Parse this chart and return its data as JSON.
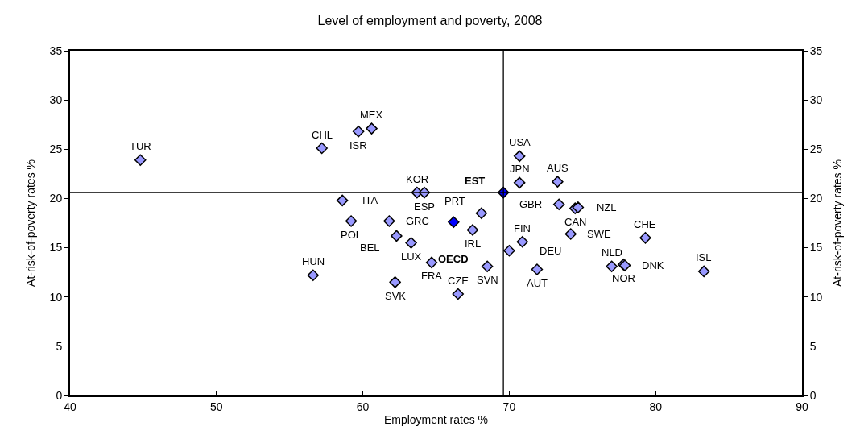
{
  "chart_data": {
    "type": "scatter",
    "title": "Level of employment and poverty, 2008",
    "xlabel": "Employment rates %",
    "ylabel": "At-risk-of-poverty rates %",
    "y2label": "At-risk-of-poverty rates %",
    "series": [
      {
        "color": "#9999ff",
        "x": [
          44.8,
          56.6,
          57.2,
          59.7,
          60.6,
          58.6,
          59.2,
          61.8,
          62.3,
          63.3,
          64.7,
          62.2,
          66.5,
          63.7,
          64.2,
          67.5,
          68.5,
          68.1,
          70.0,
          70.9,
          71.9,
          70.7,
          70.7,
          73.3,
          73.4,
          74.5,
          74.7,
          74.2,
          79.3,
          77.0,
          77.8,
          77.9,
          83.3
        ],
        "values": [
          23.9,
          12.2,
          25.1,
          26.8,
          27.1,
          19.8,
          17.7,
          17.7,
          16.2,
          15.5,
          13.5,
          11.5,
          10.3,
          20.6,
          20.6,
          16.8,
          13.1,
          18.5,
          14.7,
          15.6,
          12.8,
          24.3,
          21.6,
          21.7,
          19.4,
          19.0,
          19.1,
          16.4,
          16.0,
          13.1,
          13.3,
          13.2,
          12.6
        ]
      },
      {
        "color": "#0000ff",
        "x": [
          66.2,
          69.6
        ],
        "values": [
          17.6,
          20.6
        ]
      }
    ],
    "annotations": [
      {
        "text": "TUR",
        "x": 44.8,
        "y": 23.9
      },
      {
        "text": "HUN",
        "x": 56.6,
        "y": 12.2
      },
      {
        "text": "CHL",
        "x": 57.2,
        "y": 25.1
      },
      {
        "text": "ISR",
        "x": 59.7,
        "y": 26.8
      },
      {
        "text": "MEX",
        "x": 60.6,
        "y": 27.1
      },
      {
        "text": "ITA",
        "x": 58.6,
        "y": 19.8
      },
      {
        "text": "POL",
        "x": 59.2,
        "y": 17.7
      },
      {
        "text": "GRC",
        "x": 61.8,
        "y": 17.7
      },
      {
        "text": "BEL",
        "x": 62.3,
        "y": 16.2
      },
      {
        "text": "LUX",
        "x": 63.3,
        "y": 15.5
      },
      {
        "text": "FRA",
        "x": 64.7,
        "y": 13.5
      },
      {
        "text": "SVK",
        "x": 62.2,
        "y": 11.5
      },
      {
        "text": "CZE",
        "x": 66.5,
        "y": 10.3
      },
      {
        "text": "KOR",
        "x": 63.7,
        "y": 20.6
      },
      {
        "text": "ESP",
        "x": 64.2,
        "y": 20.6
      },
      {
        "text": "IRL",
        "x": 67.5,
        "y": 16.8
      },
      {
        "text": "SVN",
        "x": 68.5,
        "y": 13.1
      },
      {
        "text": "PRT",
        "x": 68.1,
        "y": 18.5
      },
      {
        "text": "DEU",
        "x": 70.0,
        "y": 14.7
      },
      {
        "text": "FIN",
        "x": 70.9,
        "y": 15.6
      },
      {
        "text": "AUT",
        "x": 71.9,
        "y": 12.8
      },
      {
        "text": "USA",
        "x": 70.7,
        "y": 24.3
      },
      {
        "text": "JPN",
        "x": 70.7,
        "y": 21.6
      },
      {
        "text": "AUS",
        "x": 73.3,
        "y": 21.7
      },
      {
        "text": "GBR",
        "x": 73.4,
        "y": 19.4
      },
      {
        "text": "CAN",
        "x": 74.5,
        "y": 19.0
      },
      {
        "text": "NZL",
        "x": 74.7,
        "y": 19.1
      },
      {
        "text": "SWE",
        "x": 74.2,
        "y": 16.4
      },
      {
        "text": "CHE",
        "x": 79.3,
        "y": 16.0
      },
      {
        "text": "NLD",
        "x": 77.0,
        "y": 13.1
      },
      {
        "text": "NOR",
        "x": 77.8,
        "y": 13.3
      },
      {
        "text": "DNK",
        "x": 77.9,
        "y": 13.2
      },
      {
        "text": "ISL",
        "x": 83.3,
        "y": 12.6
      },
      {
        "text": "OECD",
        "x": 66.2,
        "y": 17.6
      },
      {
        "text": "EST",
        "x": 69.6,
        "y": 20.6
      }
    ],
    "ref_lines": [
      {
        "axis": "x",
        "value": 69.6,
        "color": "#000000"
      },
      {
        "axis": "y",
        "value": 20.6,
        "color": "#000000"
      }
    ],
    "xlim": [
      40,
      90
    ],
    "xticks": [
      40,
      50,
      60,
      70,
      80,
      90
    ],
    "ylim": [
      0,
      35
    ],
    "yticks": [
      0,
      5,
      10,
      15,
      20,
      25,
      30,
      35
    ],
    "y2lim": [
      0,
      35
    ],
    "y2ticks": [
      0,
      5,
      10,
      15,
      20,
      25,
      30,
      35
    ],
    "marker": "diamond"
  }
}
